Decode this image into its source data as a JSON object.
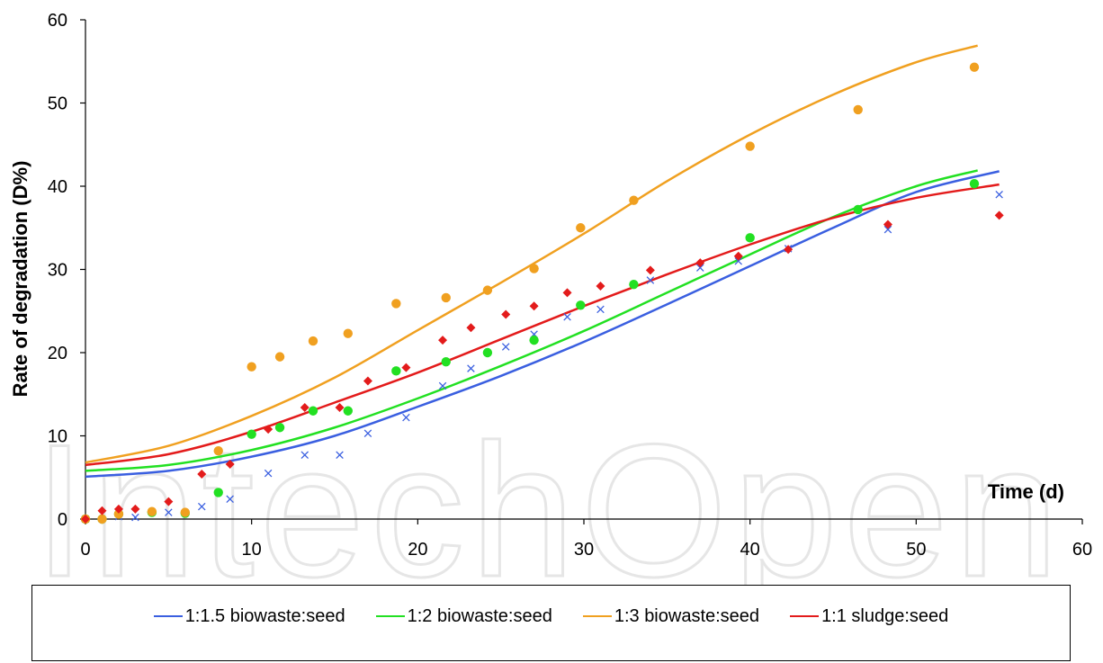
{
  "chart_data": {
    "type": "scatter",
    "title": "",
    "xlabel": "Time (d)",
    "ylabel": "Rate of degradation (D%)",
    "xlim": [
      0,
      60
    ],
    "ylim": [
      0,
      60
    ],
    "xticks": [
      "0",
      "10",
      "20",
      "30",
      "40",
      "50",
      "60"
    ],
    "yticks": [
      "0",
      "10",
      "20",
      "30",
      "40",
      "50",
      "60"
    ],
    "grid": false,
    "legend_position": "bottom",
    "watermark": "IntechOpen",
    "series": [
      {
        "name": "1:1.5 biowaste:seed",
        "color": "#3a5fe0",
        "marker": "x",
        "points": [
          [
            0,
            0
          ],
          [
            2,
            0.3
          ],
          [
            3,
            0.2
          ],
          [
            5,
            0.8
          ],
          [
            7,
            1.5
          ],
          [
            8.7,
            2.4
          ],
          [
            11,
            5.5
          ],
          [
            13.2,
            7.7
          ],
          [
            15.3,
            7.7
          ],
          [
            17,
            10.3
          ],
          [
            19.3,
            12.2
          ],
          [
            21.5,
            16
          ],
          [
            23.2,
            18.1
          ],
          [
            25.3,
            20.7
          ],
          [
            27,
            22.2
          ],
          [
            29,
            24.3
          ],
          [
            31,
            25.2
          ],
          [
            34,
            28.7
          ],
          [
            37,
            30.2
          ],
          [
            39.3,
            31
          ],
          [
            42.3,
            32.5
          ],
          [
            48.3,
            34.8
          ],
          [
            55,
            39
          ]
        ],
        "fit": [
          [
            0,
            5.1
          ],
          [
            5,
            5.8
          ],
          [
            10,
            7.5
          ],
          [
            15,
            10
          ],
          [
            20,
            13.5
          ],
          [
            25,
            17.2
          ],
          [
            30,
            21.3
          ],
          [
            35,
            25.8
          ],
          [
            40,
            30.4
          ],
          [
            45,
            35
          ],
          [
            50,
            39.3
          ],
          [
            55,
            41.8
          ]
        ]
      },
      {
        "name": "1:2 biowaste:seed",
        "color": "#22e022",
        "marker": "circle",
        "points": [
          [
            0,
            0
          ],
          [
            1,
            0
          ],
          [
            2,
            0.6
          ],
          [
            4,
            0.8
          ],
          [
            6,
            0.7
          ],
          [
            8,
            3.2
          ],
          [
            10,
            10.2
          ],
          [
            11.7,
            11
          ],
          [
            13.7,
            13
          ],
          [
            15.8,
            13
          ],
          [
            18.7,
            17.8
          ],
          [
            21.7,
            18.9
          ],
          [
            24.2,
            20
          ],
          [
            27,
            21.5
          ],
          [
            29.8,
            25.7
          ],
          [
            33,
            28.2
          ],
          [
            40,
            33.8
          ],
          [
            46.5,
            37.2
          ],
          [
            53.5,
            40.3
          ]
        ],
        "fit": [
          [
            0,
            5.8
          ],
          [
            5,
            6.5
          ],
          [
            10,
            8.3
          ],
          [
            15,
            11
          ],
          [
            20,
            14.5
          ],
          [
            25,
            18.4
          ],
          [
            30,
            22.6
          ],
          [
            35,
            27.2
          ],
          [
            40,
            31.8
          ],
          [
            45,
            36.3
          ],
          [
            50,
            40
          ],
          [
            53.7,
            41.9
          ]
        ]
      },
      {
        "name": "1:3 biowaste:seed",
        "color": "#f0a020",
        "marker": "circle",
        "points": [
          [
            0,
            0
          ],
          [
            1,
            0
          ],
          [
            2,
            0.6
          ],
          [
            4,
            0.9
          ],
          [
            6,
            0.8
          ],
          [
            8,
            8.2
          ],
          [
            10,
            18.3
          ],
          [
            11.7,
            19.5
          ],
          [
            13.7,
            21.4
          ],
          [
            15.8,
            22.3
          ],
          [
            18.7,
            25.9
          ],
          [
            21.7,
            26.6
          ],
          [
            24.2,
            27.5
          ],
          [
            27,
            30.1
          ],
          [
            29.8,
            35
          ],
          [
            33,
            38.3
          ],
          [
            40,
            44.8
          ],
          [
            46.5,
            49.2
          ],
          [
            53.5,
            54.3
          ]
        ],
        "fit": [
          [
            0,
            6.8
          ],
          [
            5,
            8.8
          ],
          [
            10,
            12.4
          ],
          [
            15,
            17
          ],
          [
            20,
            22.7
          ],
          [
            25,
            28.4
          ],
          [
            30,
            34.3
          ],
          [
            35,
            40.6
          ],
          [
            40,
            46.2
          ],
          [
            45,
            51
          ],
          [
            50,
            54.9
          ],
          [
            53.7,
            56.9
          ]
        ]
      },
      {
        "name": "1:1 sludge:seed",
        "color": "#e31b1b",
        "marker": "diamond",
        "points": [
          [
            0,
            0
          ],
          [
            1,
            1
          ],
          [
            2,
            1.2
          ],
          [
            3,
            1.2
          ],
          [
            5,
            2.1
          ],
          [
            7,
            5.4
          ],
          [
            8.7,
            6.6
          ],
          [
            11,
            10.8
          ],
          [
            13.2,
            13.4
          ],
          [
            15.3,
            13.4
          ],
          [
            17,
            16.6
          ],
          [
            19.3,
            18.2
          ],
          [
            21.5,
            21.5
          ],
          [
            23.2,
            23
          ],
          [
            25.3,
            24.6
          ],
          [
            27,
            25.6
          ],
          [
            29,
            27.2
          ],
          [
            31,
            28
          ],
          [
            34,
            29.9
          ],
          [
            37,
            30.8
          ],
          [
            39.3,
            31.6
          ],
          [
            42.3,
            32.4
          ],
          [
            48.3,
            35.4
          ],
          [
            55,
            36.5
          ]
        ],
        "fit": [
          [
            0,
            6.5
          ],
          [
            5,
            7.8
          ],
          [
            10,
            10.5
          ],
          [
            15,
            14
          ],
          [
            20,
            17.6
          ],
          [
            25,
            21.6
          ],
          [
            30,
            25.6
          ],
          [
            35,
            29.4
          ],
          [
            40,
            33
          ],
          [
            45,
            36.2
          ],
          [
            50,
            38.6
          ],
          [
            55,
            40.2
          ]
        ]
      }
    ]
  }
}
